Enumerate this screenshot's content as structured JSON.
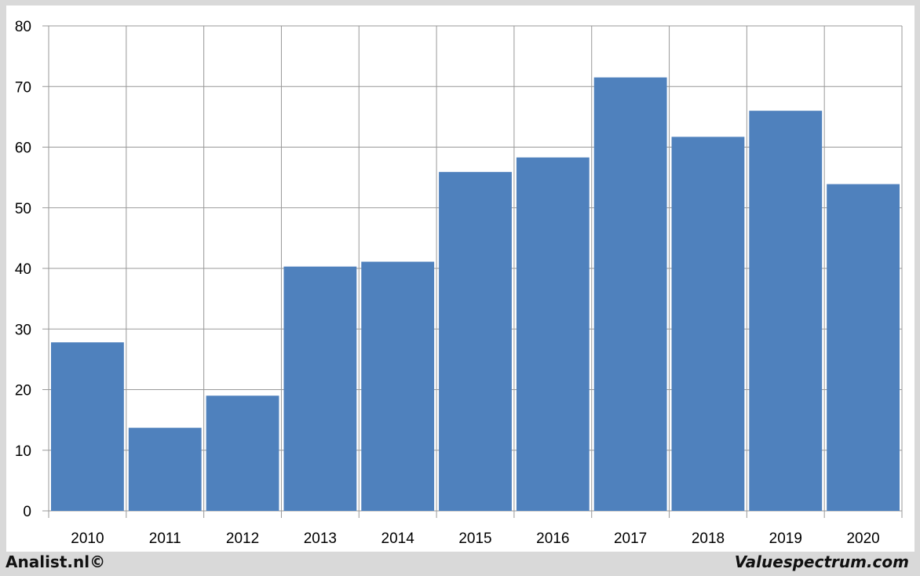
{
  "chart_data": {
    "type": "bar",
    "categories": [
      "2010",
      "2011",
      "2012",
      "2013",
      "2014",
      "2015",
      "2016",
      "2017",
      "2018",
      "2019",
      "2020"
    ],
    "values": [
      27.8,
      13.7,
      19.0,
      40.3,
      41.1,
      55.9,
      58.3,
      71.5,
      61.7,
      66.0,
      53.9
    ],
    "title": "",
    "xlabel": "",
    "ylabel": "",
    "ylim": [
      0,
      80
    ],
    "yticks": [
      "0",
      "10",
      "20",
      "30",
      "40",
      "50",
      "60",
      "70",
      "80"
    ],
    "grid": true,
    "bar_color": "#4f81bd"
  },
  "footer": {
    "left": "Analist.nl©",
    "right": "Valuespectrum.com"
  }
}
